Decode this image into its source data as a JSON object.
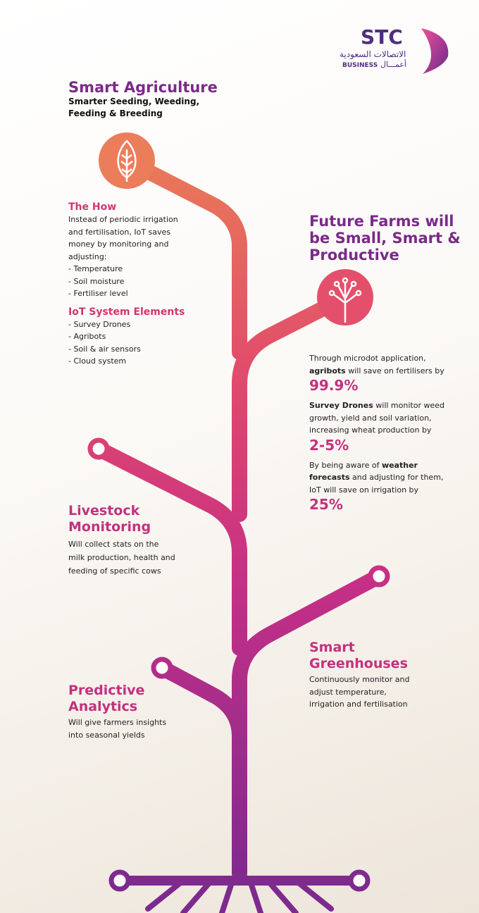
{
  "logo": {
    "name": "STC",
    "arabic": "الاتصالات السعودية",
    "business": "BUSINESS",
    "business_arabic": "أعمـــال"
  },
  "header": {
    "title": "Smart Agriculture",
    "subtitle": [
      "Smarter Seeding, Weeding,",
      "Feeding & Breeding"
    ]
  },
  "how": {
    "title": "The How",
    "lines": [
      "Instead of periodic irrigation",
      "and fertilisation, IoT saves",
      "money by monitoring and",
      "adjusting:",
      "- Temperature",
      "- Soil moisture",
      "- Fertiliser level"
    ]
  },
  "elements": {
    "title": "IoT System Elements",
    "lines": [
      "- Survey Drones",
      "- Agribots",
      "- Soil & air sensors",
      "- Cloud system"
    ]
  },
  "future": {
    "title": [
      "Future Farms will",
      "be Small, Smart &",
      "Productive"
    ],
    "stats": [
      {
        "lines": [
          "Through microdot application,",
          [
            {
              "text": "agribots",
              "bold": true
            },
            {
              "text": " will save on fertilisers by"
            }
          ]
        ],
        "value": "99.9%"
      },
      {
        "lines": [
          [
            {
              "text": "Survey Drones",
              "bold": true
            },
            {
              "text": " will monitor weed"
            }
          ],
          "growth, yield and soil variation,",
          "increasing wheat production by"
        ],
        "value": "2-5%"
      },
      {
        "lines": [
          [
            {
              "text": "By being aware of "
            },
            {
              "text": "weather",
              "bold": true
            }
          ],
          [
            {
              "text": "forecasts",
              "bold": true
            },
            {
              "text": " and adjusting for them,"
            }
          ],
          "IoT will save on irrigation by"
        ],
        "value": "25%"
      }
    ]
  },
  "livestock": {
    "title": [
      "Livestock",
      "Monitoring"
    ],
    "lines": [
      "Will collect stats on the",
      "milk production, health and",
      "feeding of specific cows"
    ]
  },
  "greenhouses": {
    "title": [
      "Smart",
      "Greenhouses"
    ],
    "lines": [
      "Continuously monitor and",
      "adjust temperature,",
      "irrigation and fertilisation"
    ]
  },
  "predictive": {
    "title": [
      "Predictive",
      "Analytics"
    ],
    "lines": [
      "Will give farmers insights",
      "into seasonal yields"
    ]
  }
}
